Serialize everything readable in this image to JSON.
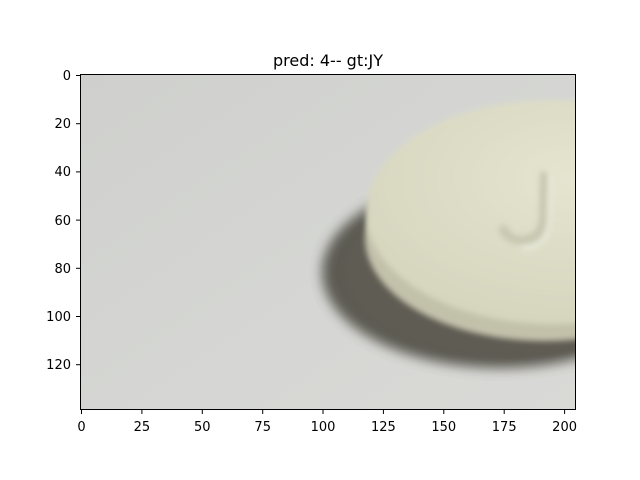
{
  "figure": {
    "title": "pred: 4-- gt:JY"
  },
  "image": {
    "description_tag": "pill-photo",
    "background_color": "#d4d5d2",
    "pill_color": "#ddddc6",
    "shadow_color": "#5b5a50",
    "imprint_visible": "J"
  },
  "axes": {
    "x_ticks": [
      "0",
      "25",
      "50",
      "75",
      "100",
      "125",
      "150",
      "175",
      "200"
    ],
    "y_ticks": [
      "0",
      "20",
      "40",
      "60",
      "80",
      "100",
      "120"
    ],
    "xlim": [
      0,
      205
    ],
    "ylim": [
      139,
      0
    ]
  }
}
